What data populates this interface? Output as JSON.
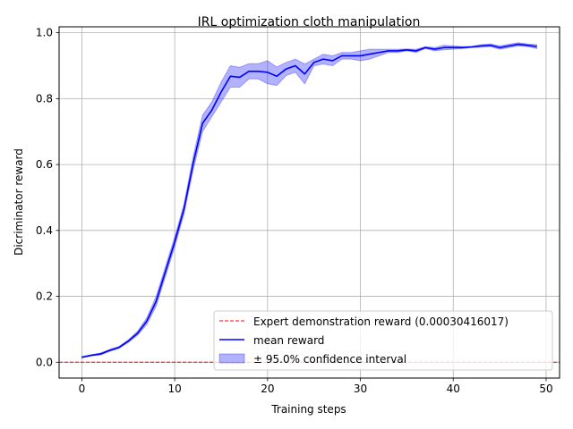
{
  "chart_data": {
    "type": "line",
    "title": "IRL optimization cloth manipulation",
    "xlabel": "Training steps",
    "ylabel": "Dicriminator reward",
    "xlim": [
      -2.45,
      51.45
    ],
    "ylim": [
      -0.048,
      1.018
    ],
    "xticks": [
      0,
      10,
      20,
      30,
      40,
      50
    ],
    "yticks": [
      0.0,
      0.2,
      0.4,
      0.6,
      0.8,
      1.0
    ],
    "xtick_labels": [
      "0",
      "10",
      "20",
      "30",
      "40",
      "50"
    ],
    "ytick_labels": [
      "0.0",
      "0.2",
      "0.4",
      "0.6",
      "0.8",
      "1.0"
    ],
    "grid": true,
    "legend_position": "lower-right",
    "expert_line": {
      "label": "Expert demonstration reward (0.00030416017)",
      "value": 0.00030416017,
      "color": "#ff0000"
    },
    "mean_series": {
      "label": "mean reward",
      "color": "#0000ff",
      "x": [
        0,
        1,
        2,
        3,
        4,
        5,
        6,
        7,
        8,
        9,
        10,
        11,
        12,
        13,
        14,
        15,
        16,
        17,
        18,
        19,
        20,
        21,
        22,
        23,
        24,
        25,
        26,
        27,
        28,
        29,
        30,
        31,
        32,
        33,
        34,
        35,
        36,
        37,
        38,
        39,
        40,
        41,
        42,
        43,
        44,
        45,
        46,
        47,
        48,
        49
      ],
      "y": [
        0.015,
        0.021,
        0.025,
        0.036,
        0.045,
        0.064,
        0.088,
        0.125,
        0.185,
        0.275,
        0.365,
        0.465,
        0.605,
        0.725,
        0.765,
        0.82,
        0.868,
        0.865,
        0.883,
        0.883,
        0.88,
        0.868,
        0.89,
        0.9,
        0.875,
        0.91,
        0.92,
        0.915,
        0.93,
        0.93,
        0.93,
        0.935,
        0.94,
        0.945,
        0.945,
        0.948,
        0.945,
        0.955,
        0.95,
        0.955,
        0.955,
        0.955,
        0.957,
        0.96,
        0.962,
        0.955,
        0.96,
        0.965,
        0.962,
        0.958
      ]
    },
    "confidence_band": {
      "label": "± 95.0% confidence interval",
      "color": "#0000ff",
      "lower": [
        0.013,
        0.019,
        0.022,
        0.033,
        0.042,
        0.06,
        0.082,
        0.115,
        0.17,
        0.26,
        0.35,
        0.45,
        0.585,
        0.7,
        0.745,
        0.79,
        0.835,
        0.835,
        0.86,
        0.86,
        0.845,
        0.84,
        0.87,
        0.88,
        0.845,
        0.9,
        0.905,
        0.9,
        0.92,
        0.92,
        0.915,
        0.92,
        0.93,
        0.94,
        0.94,
        0.945,
        0.94,
        0.952,
        0.945,
        0.948,
        0.95,
        0.952,
        0.955,
        0.956,
        0.958,
        0.95,
        0.955,
        0.96,
        0.958,
        0.952
      ],
      "upper": [
        0.017,
        0.023,
        0.028,
        0.039,
        0.048,
        0.068,
        0.094,
        0.135,
        0.2,
        0.29,
        0.38,
        0.48,
        0.625,
        0.75,
        0.79,
        0.85,
        0.9,
        0.895,
        0.906,
        0.906,
        0.915,
        0.896,
        0.91,
        0.92,
        0.905,
        0.92,
        0.935,
        0.93,
        0.94,
        0.94,
        0.945,
        0.95,
        0.95,
        0.95,
        0.95,
        0.951,
        0.95,
        0.958,
        0.955,
        0.962,
        0.96,
        0.958,
        0.959,
        0.964,
        0.966,
        0.96,
        0.965,
        0.97,
        0.966,
        0.964
      ]
    }
  }
}
